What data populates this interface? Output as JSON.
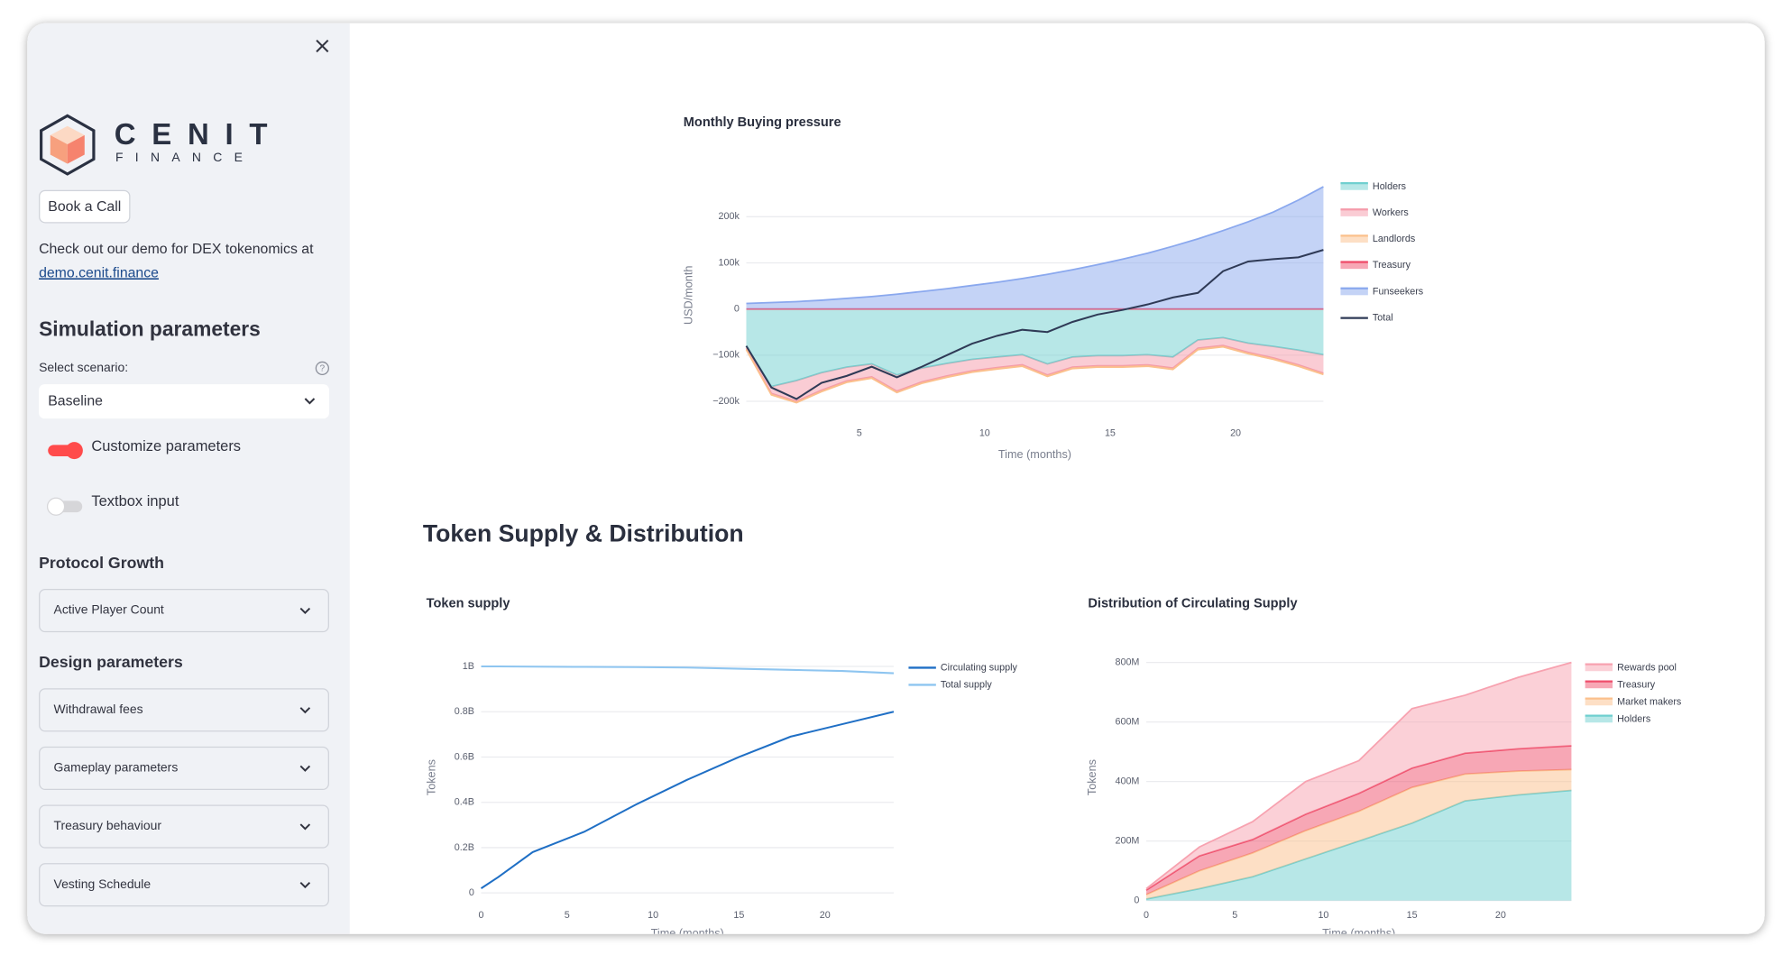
{
  "sidebar": {
    "logo_word": "CENIT",
    "logo_sub": "FINANCE",
    "book_button": "Book a Call",
    "demo_text": "Check out our demo for DEX tokenomics at",
    "demo_link": "demo.cenit.finance",
    "simulation_title": "Simulation parameters",
    "scenario_label": "Select scenario:",
    "scenario_value": "Baseline",
    "toggle_customize": "Customize parameters",
    "toggle_customize_on": true,
    "toggle_textbox": "Textbox input",
    "toggle_textbox_on": false,
    "protocol_title": "Protocol Growth",
    "protocol_items": [
      "Active Player Count"
    ],
    "design_title": "Design parameters",
    "design_items": [
      "Withdrawal fees",
      "Gameplay parameters",
      "Treasury behaviour",
      "Vesting Schedule"
    ]
  },
  "main": {
    "section_title": "Token Supply & Distribution"
  },
  "chart_data": [
    {
      "type": "area",
      "stacked": true,
      "title": "Monthly Buying pressure",
      "xlabel": "Time (months)",
      "ylabel": "USD/month",
      "x": [
        0.5,
        1.5,
        2.5,
        3.5,
        4.5,
        5.5,
        6.5,
        7.5,
        8.5,
        9.5,
        10.5,
        11.5,
        12.5,
        13.5,
        14.5,
        15.5,
        16.5,
        17.5,
        18.5,
        19.5,
        20.5,
        21.5,
        22.5,
        23.5
      ],
      "xlim": [
        0.5,
        23.5
      ],
      "xticks": [
        5,
        10,
        15,
        20
      ],
      "ylim": [
        -230000,
        290000
      ],
      "yticks": [
        {
          "value": -200000,
          "label": "−200k"
        },
        {
          "value": -100000,
          "label": "−100k"
        },
        0,
        {
          "value": 100000,
          "label": "100k"
        },
        {
          "value": 200000,
          "label": "200k"
        }
      ],
      "grid": true,
      "series": [
        {
          "name": "Holders",
          "color": "#6fcfcf",
          "values": [
            -80000,
            -168000,
            -155000,
            -138000,
            -126000,
            -119000,
            -143000,
            -128000,
            -118000,
            -109000,
            -104000,
            -99000,
            -119000,
            -104000,
            -101000,
            -101000,
            -99000,
            -104000,
            -67000,
            -62000,
            -74000,
            -81000,
            -89000,
            -99000
          ]
        },
        {
          "name": "Workers",
          "color": "#f59aaa",
          "values": [
            -5000,
            -15000,
            -45000,
            -38000,
            -30000,
            -28000,
            -35000,
            -30000,
            -27000,
            -25000,
            -23000,
            -22000,
            -24000,
            -22000,
            -22000,
            -22000,
            -22000,
            -24000,
            -18000,
            -17000,
            -20000,
            -25000,
            -32000,
            -40000
          ]
        },
        {
          "name": "Landlords",
          "color": "#fbc08c",
          "values": [
            -3000,
            -3000,
            -3000,
            -3000,
            -3000,
            -3000,
            -3000,
            -3000,
            -3000,
            -3000,
            -3000,
            -3000,
            -3000,
            -3000,
            -3000,
            -3000,
            -3000,
            -3000,
            -3000,
            -3000,
            -3000,
            -3000,
            -3000,
            -3000
          ]
        },
        {
          "name": "Treasury",
          "color": "#ef4f6c",
          "values": [
            0,
            0,
            0,
            0,
            0,
            0,
            0,
            0,
            0,
            0,
            0,
            0,
            0,
            0,
            0,
            0,
            0,
            0,
            0,
            0,
            0,
            0,
            0,
            0
          ]
        },
        {
          "name": "Funseekers",
          "color": "#8aa8ee",
          "values": [
            12000,
            14000,
            16000,
            19000,
            23000,
            27000,
            32000,
            38000,
            44000,
            51000,
            58000,
            66000,
            75000,
            85000,
            96000,
            108000,
            121000,
            136000,
            152000,
            170000,
            189000,
            210000,
            236000,
            265000
          ]
        },
        {
          "name": "Total",
          "type": "line",
          "color": "#2f3a56",
          "values": [
            -80000,
            -170000,
            -195000,
            -160000,
            -145000,
            -125000,
            -148000,
            -125000,
            -100000,
            -75000,
            -58000,
            -45000,
            -50000,
            -28000,
            -12000,
            -2000,
            10000,
            25000,
            35000,
            82000,
            103000,
            108000,
            112000,
            128000
          ]
        }
      ]
    },
    {
      "type": "line",
      "title": "Token supply",
      "xlabel": "Time (months)",
      "ylabel": "Tokens",
      "x": [
        0,
        1,
        3,
        6,
        9,
        12,
        15,
        18,
        21,
        24
      ],
      "xlim": [
        0,
        24
      ],
      "xticks": [
        0,
        5,
        10,
        15,
        20
      ],
      "ylim": [
        -40000000,
        1050000000
      ],
      "yticks": [
        0,
        {
          "value": 200000000,
          "label": "0.2B"
        },
        {
          "value": 400000000,
          "label": "0.4B"
        },
        {
          "value": 600000000,
          "label": "0.6B"
        },
        {
          "value": 800000000,
          "label": "0.8B"
        },
        {
          "value": 1000000000,
          "label": "1B"
        }
      ],
      "grid": true,
      "series": [
        {
          "name": "Circulating supply",
          "color": "#1f6fc5",
          "values": [
            20000000,
            70000000,
            180000000,
            270000000,
            390000000,
            500000000,
            600000000,
            690000000,
            745000000,
            800000000
          ]
        },
        {
          "name": "Total supply",
          "color": "#8ec5f0",
          "values": [
            1000000000,
            1000000000,
            999000000,
            998000000,
            997000000,
            995000000,
            990000000,
            985000000,
            980000000,
            970000000
          ]
        }
      ]
    },
    {
      "type": "area",
      "stacked": true,
      "legend_order": "reversed",
      "title": "Distribution of Circulating Supply",
      "xlabel": "Time (months)",
      "ylabel": "Tokens",
      "x": [
        0,
        3,
        6,
        9,
        12,
        15,
        18,
        21,
        24
      ],
      "xlim": [
        0,
        24
      ],
      "xticks": [
        0,
        5,
        10,
        15,
        20
      ],
      "ylim": [
        -20000000,
        840000000
      ],
      "yticks": [
        0,
        {
          "value": 200000000,
          "label": "200M"
        },
        {
          "value": 400000000,
          "label": "400M"
        },
        {
          "value": 600000000,
          "label": "600M"
        },
        {
          "value": 800000000,
          "label": "800M"
        }
      ],
      "grid": true,
      "series": [
        {
          "name": "Holders",
          "color": "#6fcfcf",
          "values": [
            5000000,
            40000000,
            80000000,
            140000000,
            200000000,
            260000000,
            335000000,
            355000000,
            370000000
          ]
        },
        {
          "name": "Market makers",
          "color": "#fbc08c",
          "values": [
            15000000,
            60000000,
            80000000,
            95000000,
            100000000,
            120000000,
            90000000,
            80000000,
            70000000
          ]
        },
        {
          "name": "Treasury",
          "color": "#ef4f6c",
          "values": [
            15000000,
            50000000,
            45000000,
            55000000,
            60000000,
            65000000,
            70000000,
            75000000,
            80000000
          ]
        },
        {
          "name": "Rewards pool",
          "color": "#f7a2b0",
          "values": [
            5000000,
            30000000,
            60000000,
            110000000,
            110000000,
            200000000,
            195000000,
            240000000,
            280000000
          ]
        }
      ]
    }
  ]
}
